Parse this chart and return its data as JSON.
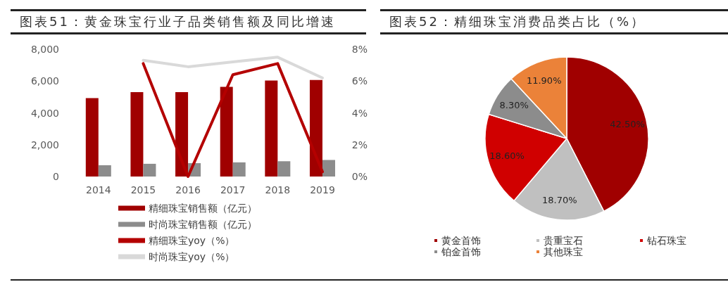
{
  "chart_data": [
    {
      "type": "bar",
      "title": "图表51：黄金珠宝行业子品类销售额及同比增速",
      "categories": [
        "2014",
        "2015",
        "2016",
        "2017",
        "2018",
        "2019"
      ],
      "series": [
        {
          "name": "精细珠宝销售额（亿元）",
          "color": "#a00000",
          "values": [
            4930,
            5300,
            5300,
            5630,
            6030,
            6070
          ]
        },
        {
          "name": "时尚珠宝销售额（亿元）",
          "color": "#8c8c8c",
          "values": [
            710,
            800,
            840,
            890,
            960,
            1040
          ]
        },
        {
          "name": "精细珠宝yoy（%）",
          "type": "line",
          "axis": "y2",
          "color": "#b40000",
          "values": [
            null,
            7.1,
            0.0,
            6.4,
            7.1,
            0.3
          ]
        },
        {
          "name": "时尚珠宝yoy（%）",
          "type": "line",
          "axis": "y2",
          "color": "#d9d9d9",
          "values": [
            null,
            7.3,
            6.9,
            7.2,
            7.5,
            6.2
          ]
        }
      ],
      "ylim": [
        0,
        8000
      ],
      "yticks": [
        0,
        {
          "value": 2000,
          "label": "2,000"
        },
        {
          "value": 4000,
          "label": "4,000"
        },
        {
          "value": 6000,
          "label": "6,000"
        },
        {
          "value": 8000,
          "label": "8,000"
        }
      ],
      "y2lim": [
        0,
        8
      ],
      "y2ticks": [
        {
          "value": 0,
          "label": "0%"
        },
        {
          "value": 2,
          "label": "2%"
        },
        {
          "value": 4,
          "label": "4%"
        },
        {
          "value": 6,
          "label": "6%"
        },
        {
          "value": 8,
          "label": "8%"
        }
      ],
      "grid": false,
      "legend": "bottom",
      "marker": "none"
    },
    {
      "type": "pie",
      "title": "图表52：精细珠宝消费品类占比（%）",
      "categories": [
        "黄金首饰",
        "贵重宝石",
        "钻石珠宝",
        "铂金首饰",
        "其他珠宝"
      ],
      "values": [
        42.5,
        18.7,
        18.6,
        8.3,
        11.9
      ],
      "colors": [
        "#a00000",
        "#c0c0c0",
        "#d00000",
        "#8c8c8c",
        "#eb8239"
      ],
      "value_labels": [
        "42.50%",
        "18.70%",
        "18.60%",
        "8.30%",
        "11.90%"
      ],
      "legend": "bottom"
    }
  ]
}
